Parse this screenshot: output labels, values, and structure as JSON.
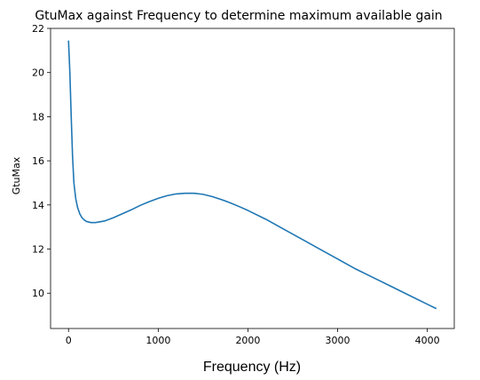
{
  "chart_data": {
    "type": "line",
    "title": "GtuMax against Frequency to determine maximum available gain",
    "xlabel": "Frequency (Hz)",
    "ylabel": "GtuMax",
    "xlim": [
      -200,
      4300
    ],
    "ylim": [
      8.4,
      22
    ],
    "xticks": [
      0,
      1000,
      2000,
      3000,
      4000
    ],
    "yticks": [
      10,
      12,
      14,
      16,
      18,
      20,
      22
    ],
    "grid": false,
    "line_color": "#1f77b4",
    "series": [
      {
        "x": [
          0,
          15,
          30,
          45,
          60,
          80,
          100,
          125,
          150,
          175,
          200,
          250,
          300,
          400,
          500,
          600,
          700,
          800,
          900,
          1000,
          1100,
          1200,
          1300,
          1400,
          1500,
          1600,
          1700,
          1800,
          1900,
          2000,
          2200,
          2400,
          2600,
          2800,
          3000,
          3200,
          3400,
          3600,
          3800,
          4000,
          4100
        ],
        "y": [
          21.45,
          20.0,
          18.0,
          16.2,
          15.0,
          14.3,
          13.9,
          13.6,
          13.42,
          13.32,
          13.25,
          13.2,
          13.2,
          13.27,
          13.42,
          13.6,
          13.78,
          13.98,
          14.15,
          14.3,
          14.42,
          14.5,
          14.53,
          14.53,
          14.48,
          14.38,
          14.25,
          14.1,
          13.93,
          13.75,
          13.35,
          12.9,
          12.45,
          12.0,
          11.55,
          11.1,
          10.7,
          10.3,
          9.9,
          9.5,
          9.3
        ]
      }
    ]
  }
}
